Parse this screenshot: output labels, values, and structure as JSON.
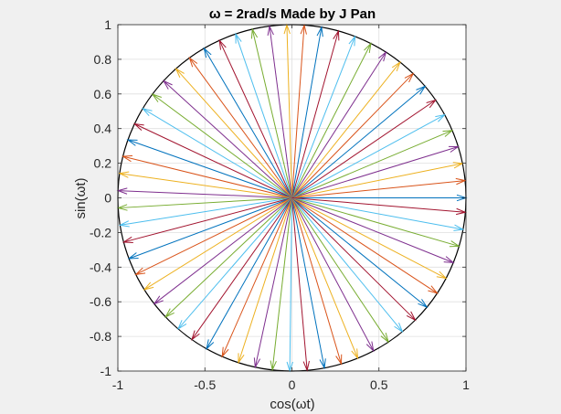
{
  "chart_data": {
    "type": "line",
    "title": "ω = 2rad/s   Made by J Pan",
    "xlabel": "cos(ωt)",
    "ylabel": "sin(ωt)",
    "xlim": [
      -1,
      1
    ],
    "ylim": [
      -1,
      1
    ],
    "xticks": [
      -1,
      -0.5,
      0,
      0.5,
      1
    ],
    "xtick_labels": [
      "-1",
      "-0.5",
      "0",
      "0.5",
      "1"
    ],
    "yticks": [
      1,
      0.8,
      0.6,
      0.4,
      0.2,
      0,
      -0.2,
      -0.4,
      -0.6,
      -0.8,
      -1
    ],
    "ytick_labels": [
      "1",
      "0.8",
      "0.6",
      "0.4",
      "0.2",
      "0",
      "-0.2",
      "-0.4",
      "-0.6",
      "-0.8",
      "-1"
    ],
    "grid": true,
    "circle": {
      "center": [
        0,
        0
      ],
      "radius": 1,
      "color": "#000000"
    },
    "vectors": {
      "origin": [
        0,
        0
      ],
      "count": 63,
      "angle_start_rad": 0,
      "angle_step_rad": 0.1,
      "magnitude": 1
    },
    "colors": [
      "#0072BD",
      "#D95319",
      "#EDB120",
      "#7E2F8E",
      "#77AC30",
      "#4DBEEE",
      "#A2142F"
    ]
  }
}
